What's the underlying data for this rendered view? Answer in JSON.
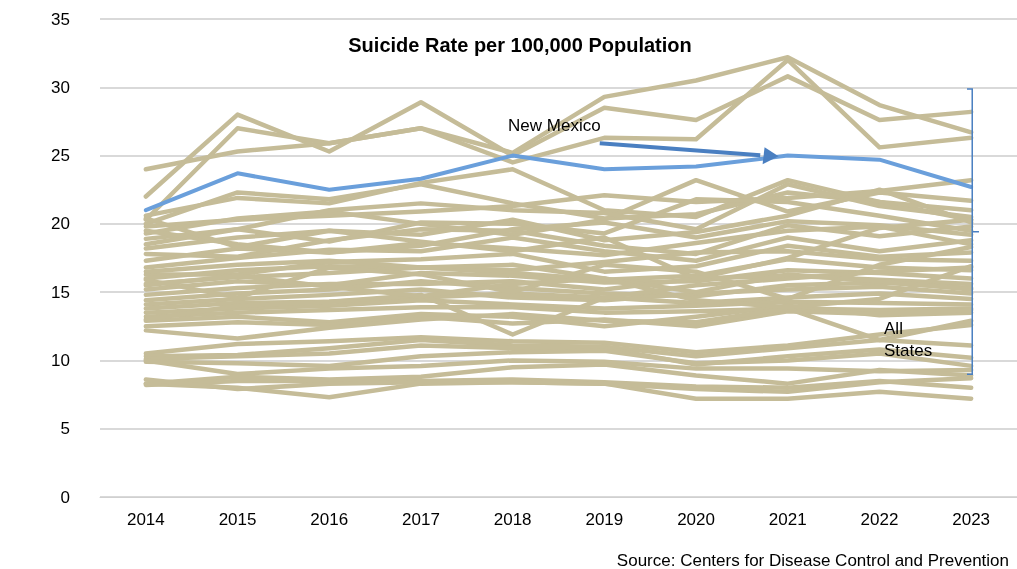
{
  "chart_data": {
    "type": "line",
    "title": "Suicide Rate per 100,000 Population",
    "annotations": [
      "All States",
      "Source: Centers for Disease Control and Prevention"
    ],
    "categories": [
      "2014",
      "2015",
      "2016",
      "2017",
      "2018",
      "2019",
      "2020",
      "2021",
      "2022",
      "2023"
    ],
    "ylim": [
      0,
      35
    ],
    "yticks": [
      0,
      5,
      10,
      15,
      20,
      25,
      30,
      35
    ],
    "grid": "y",
    "marker": "none",
    "line_style": "solid",
    "series": [
      {
        "color": "#c5bc98",
        "values": [
          24.0,
          25.3,
          25.9,
          27.0,
          25.2,
          29.3,
          30.5,
          32.2,
          28.7,
          26.7
        ]
      },
      {
        "color": "#c5bc98",
        "values": [
          22.0,
          28.0,
          25.3,
          28.9,
          25.0,
          28.5,
          27.6,
          30.8,
          27.6,
          28.2
        ]
      },
      {
        "color": "#c5bc98",
        "values": [
          20.3,
          27.0,
          25.9,
          27.0,
          24.5,
          26.3,
          26.2,
          32.0,
          25.6,
          26.3
        ]
      },
      {
        "color": "#c5bc98",
        "values": [
          20.0,
          22.3,
          21.8,
          22.9,
          21.5,
          20.4,
          20.7,
          22.3,
          21.6,
          20.3
        ]
      },
      {
        "color": "#c5bc98",
        "values": [
          20.6,
          21.9,
          21.5,
          23.0,
          24.0,
          21.0,
          20.5,
          23.2,
          21.6,
          21.0
        ]
      },
      {
        "color": "#c5bc98",
        "values": [
          19.8,
          20.3,
          20.6,
          20.9,
          21.3,
          22.1,
          21.6,
          21.9,
          22.4,
          23.2
        ]
      },
      {
        "color": "#c5bc98",
        "values": [
          19.3,
          20.4,
          20.9,
          20.0,
          19.2,
          20.3,
          23.2,
          20.9,
          22.3,
          21.7
        ]
      },
      {
        "color": "#c5bc98",
        "values": [
          18.9,
          19.6,
          21.0,
          21.5,
          21.0,
          20.8,
          19.6,
          22.9,
          21.3,
          20.5
        ]
      },
      {
        "color": "#c5bc98",
        "values": [
          18.5,
          19.6,
          18.7,
          20.1,
          20.0,
          19.3,
          21.8,
          21.6,
          20.6,
          19.5
        ]
      },
      {
        "color": "#c5bc98",
        "values": [
          18.2,
          19.0,
          19.5,
          19.2,
          20.3,
          18.8,
          19.4,
          20.6,
          22.5,
          20.1
        ]
      },
      {
        "color": "#c5bc98",
        "values": [
          17.8,
          17.6,
          18.8,
          19.6,
          19.5,
          18.4,
          17.8,
          19.9,
          19.1,
          19.8
        ]
      },
      {
        "color": "#c5bc98",
        "values": [
          17.3,
          18.2,
          17.9,
          18.6,
          18.2,
          17.7,
          18.6,
          19.5,
          19.8,
          18.5
        ]
      },
      {
        "color": "#c5bc98",
        "values": [
          16.8,
          17.5,
          18.1,
          18.0,
          19.0,
          18.0,
          17.3,
          19.0,
          18.0,
          18.8
        ]
      },
      {
        "color": "#c5bc98",
        "values": [
          16.3,
          16.3,
          17.2,
          17.4,
          17.8,
          16.5,
          16.9,
          18.4,
          17.6,
          17.9
        ]
      },
      {
        "color": "#c5bc98",
        "values": [
          16.0,
          16.6,
          16.9,
          16.8,
          16.6,
          17.2,
          17.9,
          18.0,
          17.4,
          17.3
        ]
      },
      {
        "color": "#c5bc98",
        "values": [
          15.6,
          16.1,
          16.4,
          16.8,
          16.4,
          15.9,
          16.2,
          17.4,
          16.8,
          16.6
        ]
      },
      {
        "color": "#c5bc98",
        "values": [
          15.2,
          15.8,
          15.5,
          16.4,
          16.2,
          15.7,
          15.8,
          16.6,
          16.4,
          16.0
        ]
      },
      {
        "color": "#c5bc98",
        "values": [
          14.8,
          15.3,
          15.6,
          15.6,
          15.8,
          15.2,
          16.0,
          16.2,
          15.9,
          15.6
        ]
      },
      {
        "color": "#c5bc98",
        "values": [
          14.4,
          14.9,
          15.2,
          15.8,
          15.3,
          14.9,
          14.7,
          15.5,
          15.7,
          15.3
        ]
      },
      {
        "color": "#c5bc98",
        "values": [
          14.1,
          14.5,
          14.8,
          15.2,
          14.6,
          14.4,
          14.9,
          15.2,
          15.4,
          14.9
        ]
      },
      {
        "color": "#c5bc98",
        "values": [
          13.8,
          14.2,
          14.3,
          14.6,
          14.9,
          14.6,
          14.2,
          14.6,
          14.9,
          14.5
        ]
      },
      {
        "color": "#c5bc98",
        "values": [
          13.5,
          13.8,
          14.0,
          14.4,
          14.1,
          13.8,
          14.0,
          14.3,
          14.2,
          14.1
        ]
      },
      {
        "color": "#c5bc98",
        "values": [
          13.2,
          13.5,
          13.7,
          13.9,
          13.9,
          13.5,
          13.6,
          13.8,
          13.7,
          13.8
        ]
      },
      {
        "color": "#c5bc98",
        "values": [
          12.9,
          13.2,
          12.8,
          13.4,
          13.2,
          12.5,
          13.2,
          14.0,
          13.3,
          13.5
        ]
      },
      {
        "color": "#c5bc98",
        "values": [
          12.5,
          12.8,
          12.6,
          13.2,
          12.7,
          13.0,
          12.5,
          13.6,
          13.4,
          13.7
        ]
      },
      {
        "color": "#c5bc98",
        "values": [
          12.2,
          11.6,
          12.4,
          13.0,
          13.4,
          12.9,
          12.8,
          13.8,
          11.5,
          12.9
        ]
      },
      {
        "color": "#c5bc98",
        "values": [
          13.0,
          14.0,
          14.3,
          14.8,
          11.9,
          14.6,
          15.5,
          16.0,
          16.5,
          16.8
        ]
      },
      {
        "color": "#c5bc98",
        "values": [
          16.5,
          17.0,
          17.3,
          16.8,
          17.0,
          16.0,
          15.0,
          16.3,
          15.8,
          15.2
        ]
      },
      {
        "color": "#c5bc98",
        "values": [
          19.5,
          18.5,
          17.9,
          18.4,
          19.6,
          20.1,
          19.0,
          20.2,
          19.9,
          19.2
        ]
      },
      {
        "color": "#c5bc98",
        "values": [
          20.4,
          18.3,
          19.5,
          18.7,
          18.0,
          19.0,
          16.0,
          17.5,
          19.7,
          20.3
        ]
      },
      {
        "color": "#c5bc98",
        "values": [
          15.9,
          14.6,
          16.8,
          16.3,
          15.0,
          17.0,
          16.5,
          14.5,
          17.0,
          18.3
        ]
      },
      {
        "color": "#c5bc98",
        "values": [
          15.5,
          16.2,
          15.4,
          14.7,
          15.6,
          16.0,
          14.4,
          13.9,
          14.5,
          16.9
        ]
      },
      {
        "color": "#c5bc98",
        "values": [
          10.5,
          11.2,
          11.4,
          11.7,
          11.4,
          11.3,
          10.6,
          11.1,
          11.9,
          12.6
        ]
      },
      {
        "color": "#c5bc98",
        "values": [
          10.3,
          10.4,
          10.9,
          11.5,
          11.1,
          11.0,
          10.3,
          10.9,
          11.5,
          11.1
        ]
      },
      {
        "color": "#c5bc98",
        "values": [
          10.1,
          10.3,
          10.5,
          11.1,
          10.9,
          10.9,
          9.7,
          10.3,
          10.8,
          10.2
        ]
      },
      {
        "color": "#c5bc98",
        "values": [
          9.9,
          9.8,
          9.6,
          10.3,
          10.6,
          10.7,
          9.8,
          10.0,
          10.5,
          9.6
        ]
      },
      {
        "color": "#c5bc98",
        "values": [
          10.0,
          9.0,
          9.4,
          9.6,
          10.0,
          9.9,
          9.4,
          9.4,
          9.2,
          9.3
        ]
      },
      {
        "color": "#c5bc98",
        "values": [
          8.3,
          8.8,
          8.6,
          8.8,
          9.5,
          9.7,
          8.9,
          8.3,
          9.3,
          8.9
        ]
      },
      {
        "color": "#c5bc98",
        "values": [
          8.2,
          8.5,
          8.5,
          8.5,
          8.6,
          8.4,
          8.1,
          8.0,
          8.5,
          8.0
        ]
      },
      {
        "color": "#c5bc98",
        "values": [
          8.3,
          8.0,
          7.3,
          8.3,
          8.4,
          8.3,
          7.2,
          7.2,
          7.7,
          7.2
        ]
      },
      {
        "color": "#c5bc98",
        "values": [
          8.6,
          7.9,
          8.3,
          8.4,
          8.4,
          8.3,
          7.9,
          7.7,
          8.4,
          8.7
        ]
      },
      {
        "name": "New Mexico",
        "color": "#6a9fdb",
        "values": [
          21.0,
          23.7,
          22.5,
          23.3,
          25.0,
          24.0,
          24.2,
          25.0,
          24.7,
          22.7
        ]
      }
    ]
  }
}
